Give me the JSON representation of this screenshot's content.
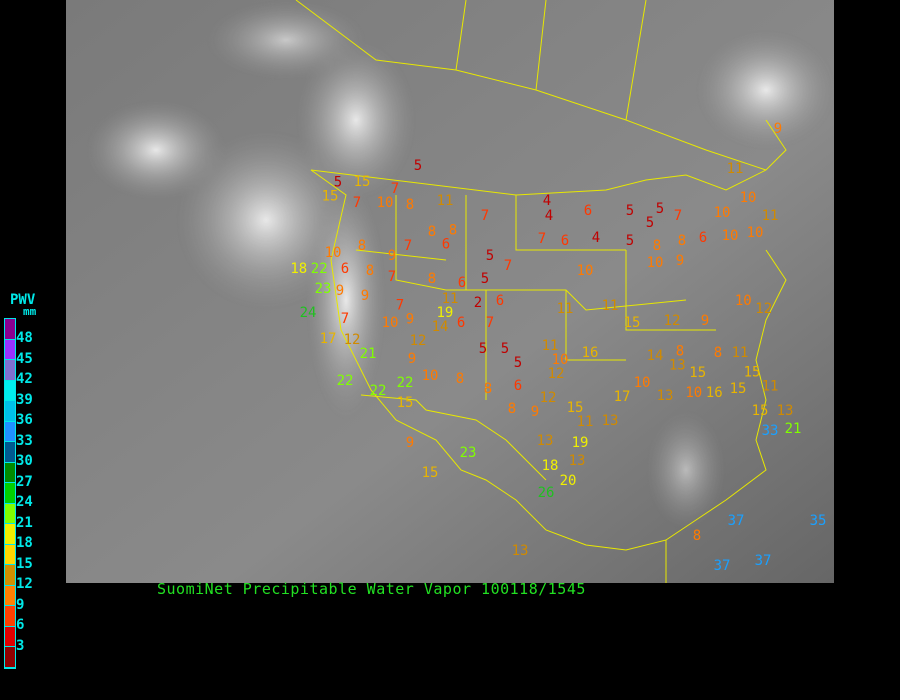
{
  "caption": "SuomiNet Precipitable Water Vapor 100118/1545",
  "legend": {
    "title": "PWV",
    "unit": "mm",
    "labels": [
      "48",
      "45",
      "42",
      "39",
      "36",
      "33",
      "30",
      "27",
      "24",
      "21",
      "18",
      "15",
      "12",
      "9",
      "6",
      "3"
    ],
    "colors": [
      "#8a0090",
      "#9933ff",
      "#8070d0",
      "#00eeee",
      "#00c0e8",
      "#2090ff",
      "#005a90",
      "#008a00",
      "#00d000",
      "#80ff00",
      "#f0f000",
      "#ffd800",
      "#d09000",
      "#ff8000",
      "#ff4000",
      "#e00000",
      "#900000"
    ]
  },
  "stations": [
    5,
    15,
    15,
    5,
    7,
    7,
    10,
    8,
    11,
    7,
    4,
    4,
    6,
    5,
    5,
    5,
    7,
    8,
    8,
    6,
    7,
    7,
    6,
    4,
    5,
    8,
    8,
    6,
    10,
    10,
    10,
    10,
    11,
    11,
    9,
    10,
    8,
    6,
    8,
    9,
    9,
    18,
    22,
    9,
    8,
    6,
    5,
    5,
    7,
    7,
    2,
    6,
    23,
    24,
    7,
    10,
    9,
    7,
    12,
    19,
    6,
    7,
    10,
    11,
    11,
    15,
    10,
    9,
    12,
    8,
    9,
    10,
    12,
    17,
    12,
    21,
    22,
    22,
    22,
    15,
    9,
    10,
    8,
    8,
    5,
    5,
    5,
    6,
    8,
    9,
    11,
    10,
    12,
    16,
    12,
    15,
    11,
    13,
    17,
    10,
    14,
    13,
    15,
    13,
    10,
    8,
    11,
    16,
    15,
    15,
    11,
    15,
    13,
    19,
    18,
    20,
    13,
    13,
    23,
    9,
    15,
    13,
    8,
    37,
    35,
    37,
    37,
    33,
    21,
    26,
    14,
    11
  ],
  "station_colors": {
    "le5": "#c00000",
    "le7": "#ff3800",
    "le10": "#ff7a00",
    "le14": "#d08a00",
    "le17": "#e8b400",
    "le20": "#f0f000",
    "le23": "#80ff00",
    "le29": "#20c020",
    "hi": "#1aa0ff"
  }
}
